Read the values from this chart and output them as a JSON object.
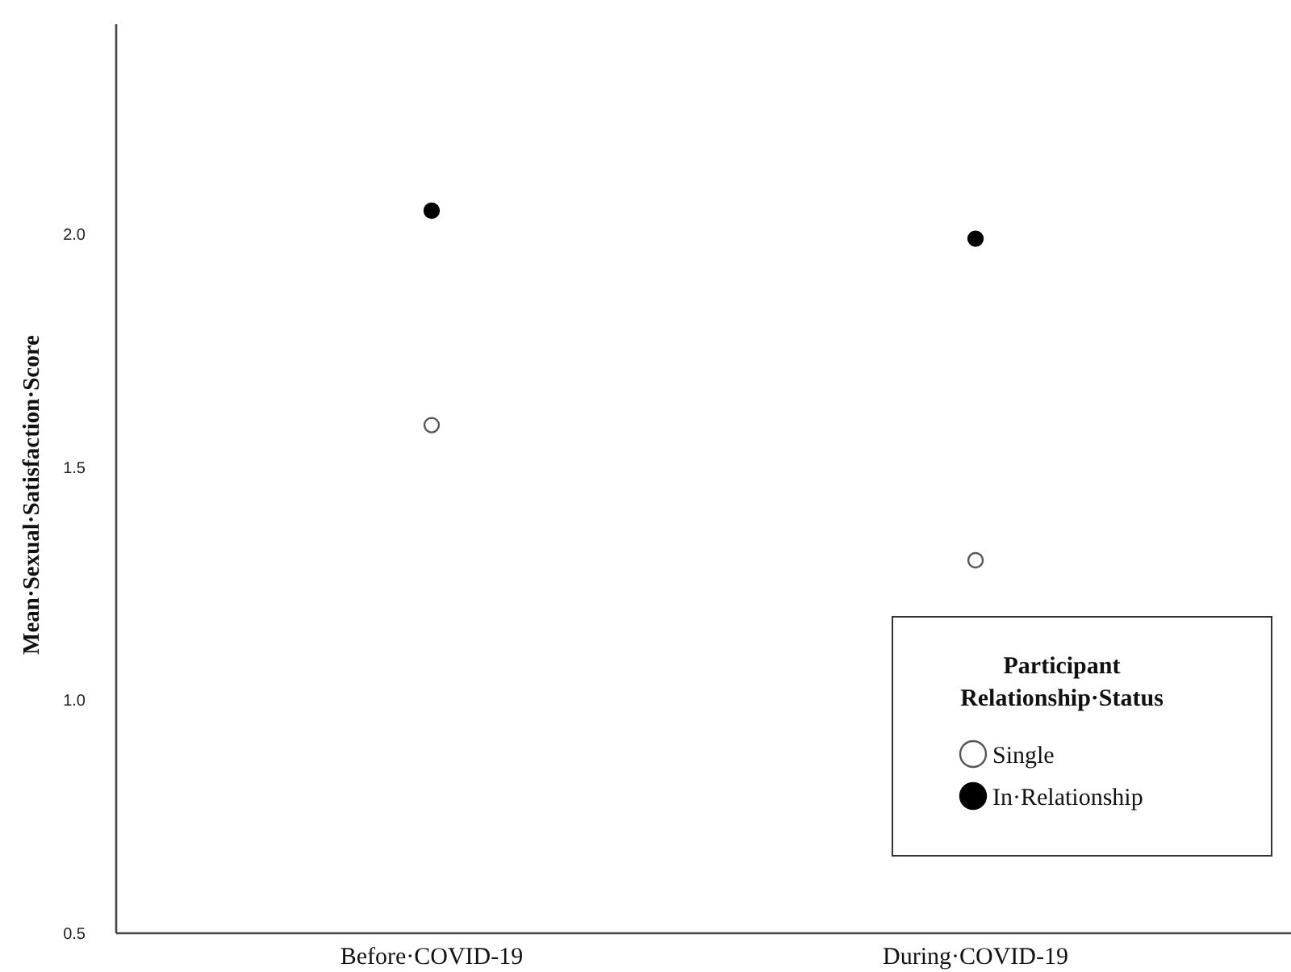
{
  "chart_data": {
    "type": "scatter",
    "ylabel": "Mean·Sexual·Satisfaction·Score",
    "legend_title": "Participant Relationship·Status",
    "categories": [
      "Before·COVID-19",
      "During·COVID-19"
    ],
    "series": [
      {
        "name": "Single",
        "color": "#ffffff",
        "values": [
          1.59,
          1.3
        ]
      },
      {
        "name": "In·Relationship",
        "color": "#000000",
        "values": [
          2.05,
          1.99
        ]
      }
    ],
    "ylim": [
      0.5,
      2.45
    ],
    "yticks": [
      {
        "value": 0.5,
        "label": "0.5"
      },
      {
        "value": 1,
        "label": "1.0"
      },
      {
        "value": 1.5,
        "label": "1.5"
      },
      {
        "value": 2,
        "label": "2.0"
      }
    ],
    "marker": "circle",
    "legend": "bottom right",
    "grid": false
  }
}
